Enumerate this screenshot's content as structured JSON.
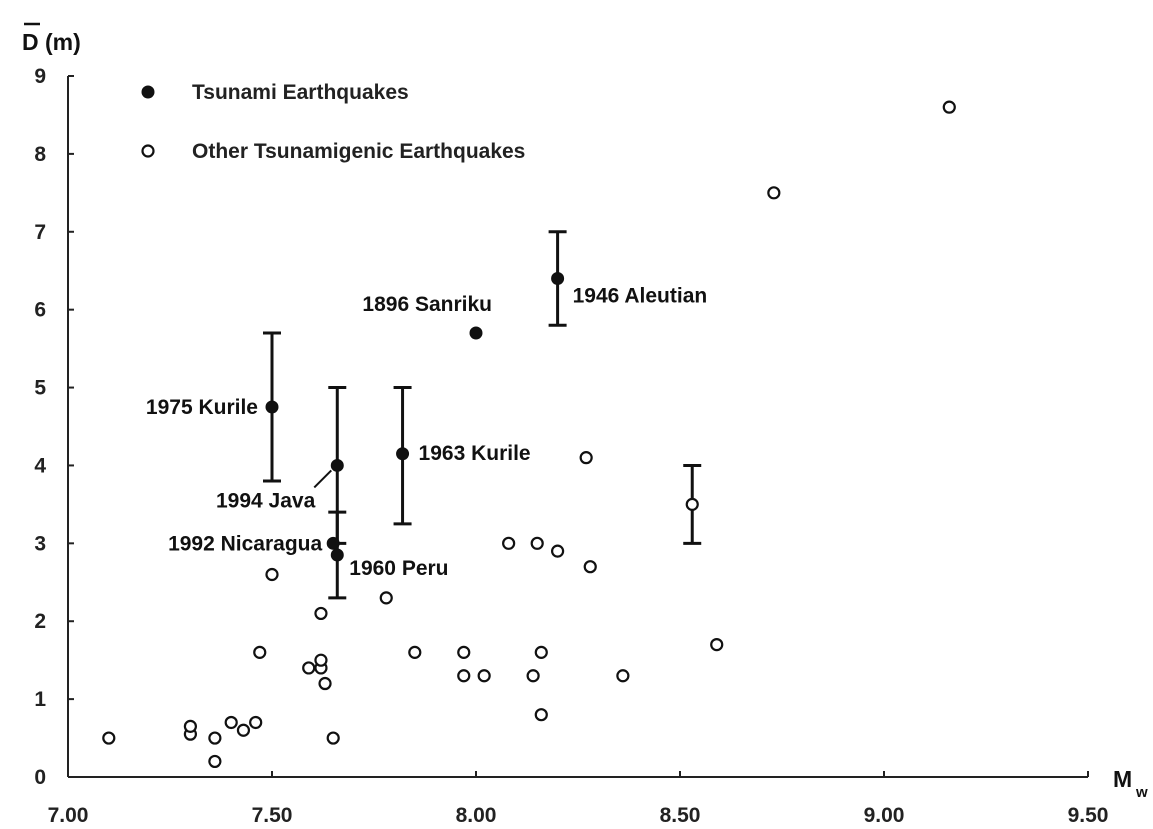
{
  "chart_data": {
    "type": "scatter",
    "ylabel": "D (m)",
    "xlabel": "M",
    "xlabel_sub": "w",
    "xlim": [
      7.0,
      9.5
    ],
    "ylim": [
      0,
      9
    ],
    "xticks": [
      "7.00",
      "7.50",
      "8.00",
      "8.50",
      "9.00",
      "9.50"
    ],
    "yticks": [
      "0",
      "1",
      "2",
      "3",
      "4",
      "5",
      "6",
      "7",
      "8",
      "9"
    ],
    "legend_position": "top-left",
    "series": [
      {
        "name": "Tsunami Earthquakes",
        "marker": "filled-circle",
        "points": [
          {
            "x": 7.5,
            "y": 4.75,
            "err": [
              3.8,
              5.7
            ],
            "label": "1975 Kurile"
          },
          {
            "x": 7.66,
            "y": 4.0,
            "err": [
              3.0,
              5.0
            ],
            "label": "1994 Java"
          },
          {
            "x": 7.65,
            "y": 3.0,
            "label": "1992 Nicaragua"
          },
          {
            "x": 7.66,
            "y": 2.85,
            "err": [
              2.3,
              3.4
            ],
            "label": "1960 Peru"
          },
          {
            "x": 7.82,
            "y": 4.15,
            "err": [
              3.25,
              5.0
            ],
            "label": "1963 Kurile"
          },
          {
            "x": 8.0,
            "y": 5.7,
            "label": "1896 Sanriku"
          },
          {
            "x": 8.2,
            "y": 6.4,
            "err": [
              5.8,
              7.0
            ],
            "label": "1946 Aleutian"
          }
        ]
      },
      {
        "name": "Other Tsunamigenic Earthquakes",
        "marker": "open-circle",
        "points": [
          {
            "x": 7.1,
            "y": 0.5
          },
          {
            "x": 7.3,
            "y": 0.55
          },
          {
            "x": 7.3,
            "y": 0.65
          },
          {
            "x": 7.36,
            "y": 0.5
          },
          {
            "x": 7.36,
            "y": 0.2
          },
          {
            "x": 7.4,
            "y": 0.7
          },
          {
            "x": 7.43,
            "y": 0.6
          },
          {
            "x": 7.46,
            "y": 0.7
          },
          {
            "x": 7.47,
            "y": 1.6
          },
          {
            "x": 7.5,
            "y": 2.6
          },
          {
            "x": 7.59,
            "y": 1.4
          },
          {
            "x": 7.62,
            "y": 1.4
          },
          {
            "x": 7.62,
            "y": 1.5
          },
          {
            "x": 7.62,
            "y": 2.1
          },
          {
            "x": 7.63,
            "y": 1.2
          },
          {
            "x": 7.65,
            "y": 0.5
          },
          {
            "x": 7.78,
            "y": 2.3
          },
          {
            "x": 7.85,
            "y": 1.6
          },
          {
            "x": 7.97,
            "y": 1.6
          },
          {
            "x": 7.97,
            "y": 1.3
          },
          {
            "x": 8.02,
            "y": 1.3
          },
          {
            "x": 8.08,
            "y": 3.0
          },
          {
            "x": 8.14,
            "y": 1.3
          },
          {
            "x": 8.15,
            "y": 3.0
          },
          {
            "x": 8.16,
            "y": 1.6
          },
          {
            "x": 8.16,
            "y": 0.8
          },
          {
            "x": 8.2,
            "y": 2.9
          },
          {
            "x": 8.27,
            "y": 4.1
          },
          {
            "x": 8.28,
            "y": 2.7
          },
          {
            "x": 8.36,
            "y": 1.3
          },
          {
            "x": 8.53,
            "y": 3.5,
            "err": [
              3.0,
              4.0
            ]
          },
          {
            "x": 8.59,
            "y": 1.7
          },
          {
            "x": 8.73,
            "y": 7.5
          },
          {
            "x": 9.16,
            "y": 8.6
          }
        ]
      }
    ]
  }
}
